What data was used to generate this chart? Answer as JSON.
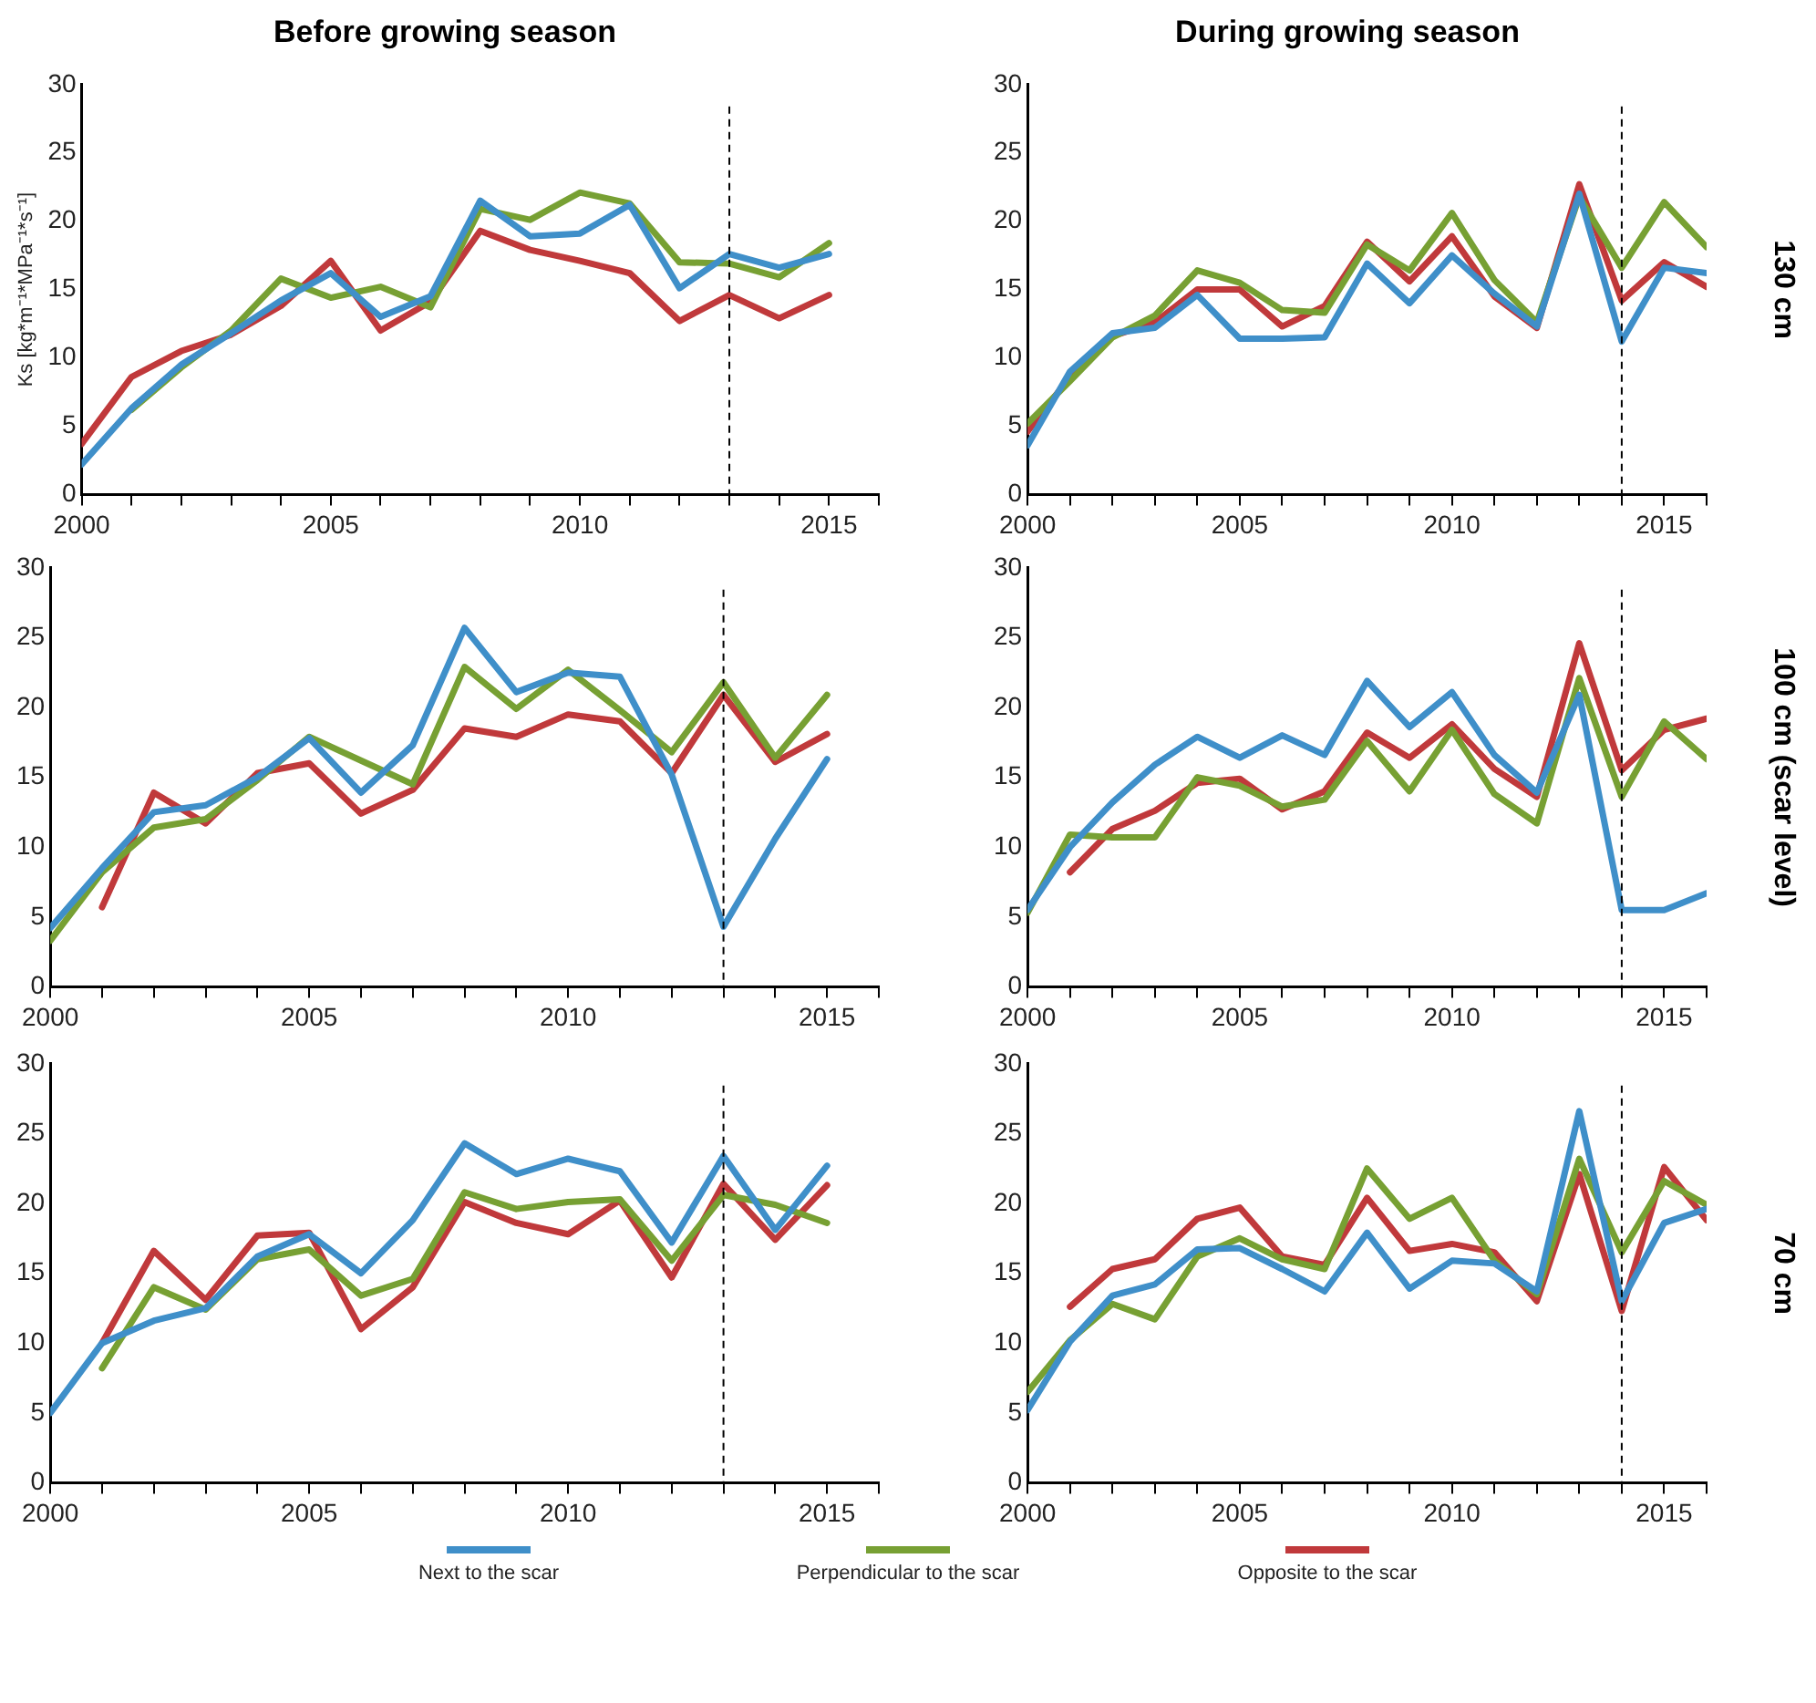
{
  "chart_data": [
    {
      "type": "line",
      "title": "Before growing season",
      "ylabel": "Ks [kg*m⁻¹*MPa⁻¹*s⁻¹]",
      "x": [
        2000,
        2001,
        2002,
        2003,
        2004,
        2005,
        2006,
        2007,
        2008,
        2009,
        2010,
        2011,
        2012,
        2013,
        2014,
        2015
      ],
      "xlim": [
        2000,
        2016
      ],
      "xticks": [
        2000,
        {
          "value": 2001,
          "label": null
        },
        {
          "value": 2002,
          "label": null
        },
        {
          "value": 2003,
          "label": null
        },
        {
          "value": 2004,
          "label": null
        },
        2005,
        {
          "value": 2006,
          "label": null
        },
        {
          "value": 2007,
          "label": null
        },
        {
          "value": 2008,
          "label": null
        },
        {
          "value": 2009,
          "label": null
        },
        2010,
        {
          "value": 2011,
          "label": null
        },
        {
          "value": 2012,
          "label": null
        },
        {
          "value": 2013,
          "label": null
        },
        {
          "value": 2014,
          "label": null
        },
        2015,
        {
          "value": 2016,
          "label": null
        }
      ],
      "ylim": [
        0,
        30
      ],
      "yticks": [
        0,
        5,
        10,
        15,
        20,
        25,
        30
      ],
      "grid": false,
      "marker": "none",
      "line_style": "solid",
      "ref_lines": [
        {
          "axis": "x",
          "value": 2013,
          "color": "#000000",
          "line_style": "dashed"
        }
      ],
      "series": [
        {
          "color": "#3f8fc9",
          "values": [
            2.2,
            6.3,
            9.5,
            11.8,
            14.2,
            16.2,
            13.0,
            14.5,
            21.5,
            18.9,
            19.1,
            21.2,
            15.1,
            17.6,
            16.6,
            17.6
          ]
        },
        {
          "color": "#77a033",
          "values": [
            null,
            6.2,
            9.3,
            12.0,
            15.8,
            14.4,
            15.2,
            13.7,
            20.9,
            20.1,
            22.1,
            21.3,
            17.0,
            16.9,
            15.9,
            18.4
          ]
        },
        {
          "color": "#c0393b",
          "values": [
            3.7,
            8.6,
            10.5,
            11.7,
            13.8,
            17.1,
            12.0,
            14.1,
            19.3,
            17.9,
            17.1,
            16.2,
            12.7,
            14.6,
            12.9,
            14.6
          ]
        }
      ]
    },
    {
      "type": "line",
      "title": "During growing season",
      "annotations": [
        "130 cm"
      ],
      "x": [
        2000,
        2001,
        2002,
        2003,
        2004,
        2005,
        2006,
        2007,
        2008,
        2009,
        2010,
        2011,
        2012,
        2013,
        2014,
        2015,
        2016
      ],
      "xlim": [
        2000,
        2016
      ],
      "xticks": [
        2000,
        {
          "value": 2001,
          "label": null
        },
        {
          "value": 2002,
          "label": null
        },
        {
          "value": 2003,
          "label": null
        },
        {
          "value": 2004,
          "label": null
        },
        2005,
        {
          "value": 2006,
          "label": null
        },
        {
          "value": 2007,
          "label": null
        },
        {
          "value": 2008,
          "label": null
        },
        {
          "value": 2009,
          "label": null
        },
        2010,
        {
          "value": 2011,
          "label": null
        },
        {
          "value": 2012,
          "label": null
        },
        {
          "value": 2013,
          "label": null
        },
        {
          "value": 2014,
          "label": null
        },
        2015,
        {
          "value": 2016,
          "label": null
        }
      ],
      "ylim": [
        0,
        30
      ],
      "yticks": [
        0,
        5,
        10,
        15,
        20,
        25,
        30
      ],
      "grid": false,
      "marker": "none",
      "line_style": "solid",
      "ref_lines": [
        {
          "axis": "x",
          "value": 2014,
          "color": "#000000",
          "line_style": "dashed"
        }
      ],
      "series": [
        {
          "color": "#3f8fc9",
          "values": [
            3.6,
            9.0,
            11.8,
            12.2,
            14.6,
            11.4,
            11.4,
            11.5,
            16.9,
            14.0,
            17.5,
            14.7,
            12.3,
            22.0,
            11.2,
            16.6,
            16.2
          ]
        },
        {
          "color": "#77a033",
          "values": [
            5.2,
            8.3,
            11.5,
            13.1,
            16.4,
            15.5,
            13.5,
            13.3,
            18.3,
            16.4,
            20.6,
            15.7,
            12.6,
            21.8,
            16.6,
            21.4,
            18.1
          ]
        },
        {
          "color": "#c0393b",
          "values": [
            4.6,
            8.6,
            11.6,
            12.6,
            15.0,
            15.0,
            12.3,
            13.8,
            18.5,
            15.6,
            18.9,
            14.5,
            12.2,
            22.7,
            14.2,
            17.0,
            15.2
          ]
        }
      ]
    },
    {
      "type": "line",
      "x": [
        2000,
        2001,
        2002,
        2003,
        2004,
        2005,
        2006,
        2007,
        2008,
        2009,
        2010,
        2011,
        2012,
        2013,
        2014,
        2015
      ],
      "xlim": [
        2000,
        2016
      ],
      "xticks": [
        2000,
        {
          "value": 2001,
          "label": null
        },
        {
          "value": 2002,
          "label": null
        },
        {
          "value": 2003,
          "label": null
        },
        {
          "value": 2004,
          "label": null
        },
        2005,
        {
          "value": 2006,
          "label": null
        },
        {
          "value": 2007,
          "label": null
        },
        {
          "value": 2008,
          "label": null
        },
        {
          "value": 2009,
          "label": null
        },
        2010,
        {
          "value": 2011,
          "label": null
        },
        {
          "value": 2012,
          "label": null
        },
        {
          "value": 2013,
          "label": null
        },
        {
          "value": 2014,
          "label": null
        },
        2015,
        {
          "value": 2016,
          "label": null
        }
      ],
      "ylim": [
        0,
        30
      ],
      "yticks": [
        0,
        5,
        10,
        15,
        20,
        25,
        30
      ],
      "grid": false,
      "marker": "none",
      "line_style": "solid",
      "ref_lines": [
        {
          "axis": "x",
          "value": 2013,
          "color": "#000000",
          "line_style": "dashed"
        }
      ],
      "series": [
        {
          "color": "#3f8fc9",
          "values": [
            4.2,
            8.5,
            12.5,
            13.0,
            15.0,
            17.8,
            13.9,
            17.3,
            25.7,
            21.1,
            22.5,
            22.2,
            15.2,
            4.3,
            10.6,
            16.3
          ]
        },
        {
          "color": "#77a033",
          "values": [
            3.3,
            8.2,
            11.4,
            12.0,
            14.8,
            17.9,
            16.2,
            14.5,
            22.9,
            19.9,
            22.7,
            19.8,
            16.8,
            21.8,
            16.4,
            20.9
          ]
        },
        {
          "color": "#c0393b",
          "values": [
            null,
            5.7,
            13.9,
            11.7,
            15.3,
            16.0,
            12.4,
            14.1,
            18.5,
            17.9,
            19.5,
            19.0,
            15.3,
            20.9,
            16.1,
            18.1
          ]
        }
      ]
    },
    {
      "type": "line",
      "annotations": [
        "100 cm (scar level)"
      ],
      "x": [
        2000,
        2001,
        2002,
        2003,
        2004,
        2005,
        2006,
        2007,
        2008,
        2009,
        2010,
        2011,
        2012,
        2013,
        2014,
        2015,
        2016
      ],
      "xlim": [
        2000,
        2016
      ],
      "xticks": [
        2000,
        {
          "value": 2001,
          "label": null
        },
        {
          "value": 2002,
          "label": null
        },
        {
          "value": 2003,
          "label": null
        },
        {
          "value": 2004,
          "label": null
        },
        2005,
        {
          "value": 2006,
          "label": null
        },
        {
          "value": 2007,
          "label": null
        },
        {
          "value": 2008,
          "label": null
        },
        {
          "value": 2009,
          "label": null
        },
        2010,
        {
          "value": 2011,
          "label": null
        },
        {
          "value": 2012,
          "label": null
        },
        {
          "value": 2013,
          "label": null
        },
        {
          "value": 2014,
          "label": null
        },
        2015,
        {
          "value": 2016,
          "label": null
        }
      ],
      "ylim": [
        0,
        30
      ],
      "yticks": [
        0,
        5,
        10,
        15,
        20,
        25,
        30
      ],
      "grid": false,
      "marker": "none",
      "line_style": "solid",
      "ref_lines": [
        {
          "axis": "x",
          "value": 2014,
          "color": "#000000",
          "line_style": "dashed"
        }
      ],
      "series": [
        {
          "color": "#3f8fc9",
          "values": [
            5.5,
            10.0,
            13.2,
            15.9,
            17.9,
            16.4,
            18.0,
            16.6,
            21.9,
            18.6,
            21.1,
            16.6,
            13.9,
            20.9,
            5.5,
            5.5,
            6.7
          ]
        },
        {
          "color": "#77a033",
          "values": [
            5.3,
            10.9,
            10.7,
            10.7,
            15.0,
            14.4,
            12.9,
            13.4,
            17.6,
            14.0,
            18.4,
            13.8,
            11.7,
            22.1,
            13.6,
            19.0,
            16.3
          ]
        },
        {
          "color": "#c0393b",
          "values": [
            null,
            8.2,
            11.3,
            12.6,
            14.6,
            14.9,
            12.7,
            14.0,
            18.2,
            16.4,
            18.8,
            15.6,
            13.6,
            24.6,
            15.5,
            18.4,
            19.2
          ]
        }
      ]
    },
    {
      "type": "line",
      "x": [
        2000,
        2001,
        2002,
        2003,
        2004,
        2005,
        2006,
        2007,
        2008,
        2009,
        2010,
        2011,
        2012,
        2013,
        2014,
        2015
      ],
      "xlim": [
        2000,
        2016
      ],
      "xticks": [
        2000,
        {
          "value": 2001,
          "label": null
        },
        {
          "value": 2002,
          "label": null
        },
        {
          "value": 2003,
          "label": null
        },
        {
          "value": 2004,
          "label": null
        },
        2005,
        {
          "value": 2006,
          "label": null
        },
        {
          "value": 2007,
          "label": null
        },
        {
          "value": 2008,
          "label": null
        },
        {
          "value": 2009,
          "label": null
        },
        2010,
        {
          "value": 2011,
          "label": null
        },
        {
          "value": 2012,
          "label": null
        },
        {
          "value": 2013,
          "label": null
        },
        {
          "value": 2014,
          "label": null
        },
        2015,
        {
          "value": 2016,
          "label": null
        }
      ],
      "ylim": [
        0,
        30
      ],
      "yticks": [
        0,
        5,
        10,
        15,
        20,
        25,
        30
      ],
      "grid": false,
      "marker": "none",
      "line_style": "solid",
      "ref_lines": [
        {
          "axis": "x",
          "value": 2013,
          "color": "#000000",
          "line_style": "dashed"
        }
      ],
      "series": [
        {
          "color": "#3f8fc9",
          "values": [
            5.0,
            10.0,
            11.6,
            12.5,
            16.2,
            17.8,
            15.0,
            18.8,
            24.3,
            22.1,
            23.2,
            22.3,
            17.2,
            23.4,
            18.1,
            22.7
          ]
        },
        {
          "color": "#77a033",
          "values": [
            null,
            8.2,
            14.0,
            12.4,
            16.0,
            16.7,
            13.4,
            14.6,
            20.8,
            19.6,
            20.1,
            20.3,
            15.9,
            20.6,
            19.9,
            18.6
          ]
        },
        {
          "color": "#c0393b",
          "values": [
            null,
            10.0,
            16.6,
            13.1,
            17.7,
            17.9,
            11.0,
            14.0,
            20.1,
            18.6,
            17.8,
            20.2,
            14.7,
            21.4,
            17.4,
            21.3
          ]
        }
      ]
    },
    {
      "type": "line",
      "annotations": [
        "70 cm"
      ],
      "legend": "bottom",
      "x": [
        2000,
        2001,
        2002,
        2003,
        2004,
        2005,
        2006,
        2007,
        2008,
        2009,
        2010,
        2011,
        2012,
        2013,
        2014,
        2015,
        2016
      ],
      "xlim": [
        2000,
        2016
      ],
      "xticks": [
        2000,
        {
          "value": 2001,
          "label": null
        },
        {
          "value": 2002,
          "label": null
        },
        {
          "value": 2003,
          "label": null
        },
        {
          "value": 2004,
          "label": null
        },
        2005,
        {
          "value": 2006,
          "label": null
        },
        {
          "value": 2007,
          "label": null
        },
        {
          "value": 2008,
          "label": null
        },
        {
          "value": 2009,
          "label": null
        },
        2010,
        {
          "value": 2011,
          "label": null
        },
        {
          "value": 2012,
          "label": null
        },
        {
          "value": 2013,
          "label": null
        },
        {
          "value": 2014,
          "label": null
        },
        2015,
        {
          "value": 2016,
          "label": null
        }
      ],
      "ylim": [
        0,
        30
      ],
      "yticks": [
        0,
        5,
        10,
        15,
        20,
        25,
        30
      ],
      "grid": false,
      "marker": "none",
      "line_style": "solid",
      "ref_lines": [
        {
          "axis": "x",
          "value": 2014,
          "color": "#000000",
          "line_style": "dashed"
        }
      ],
      "series": [
        {
          "name": "Next to the scar",
          "color": "#3f8fc9",
          "values": [
            5.2,
            10.1,
            13.4,
            14.2,
            16.7,
            16.8,
            15.3,
            13.7,
            17.9,
            13.9,
            15.9,
            15.7,
            13.7,
            26.6,
            13.0,
            18.6,
            19.6
          ]
        },
        {
          "name": "Perpendicular to the scar",
          "color": "#77a033",
          "values": [
            6.5,
            10.2,
            12.8,
            11.7,
            16.2,
            17.5,
            16.0,
            15.3,
            22.5,
            18.9,
            20.4,
            15.9,
            13.5,
            23.2,
            16.5,
            21.6,
            19.9
          ]
        },
        {
          "name": "Opposite to the scar",
          "color": "#c0393b",
          "values": [
            null,
            12.6,
            15.3,
            16.0,
            18.9,
            19.7,
            16.2,
            15.6,
            20.4,
            16.6,
            17.1,
            16.5,
            13.0,
            22.1,
            12.3,
            22.6,
            18.8
          ]
        }
      ]
    }
  ]
}
